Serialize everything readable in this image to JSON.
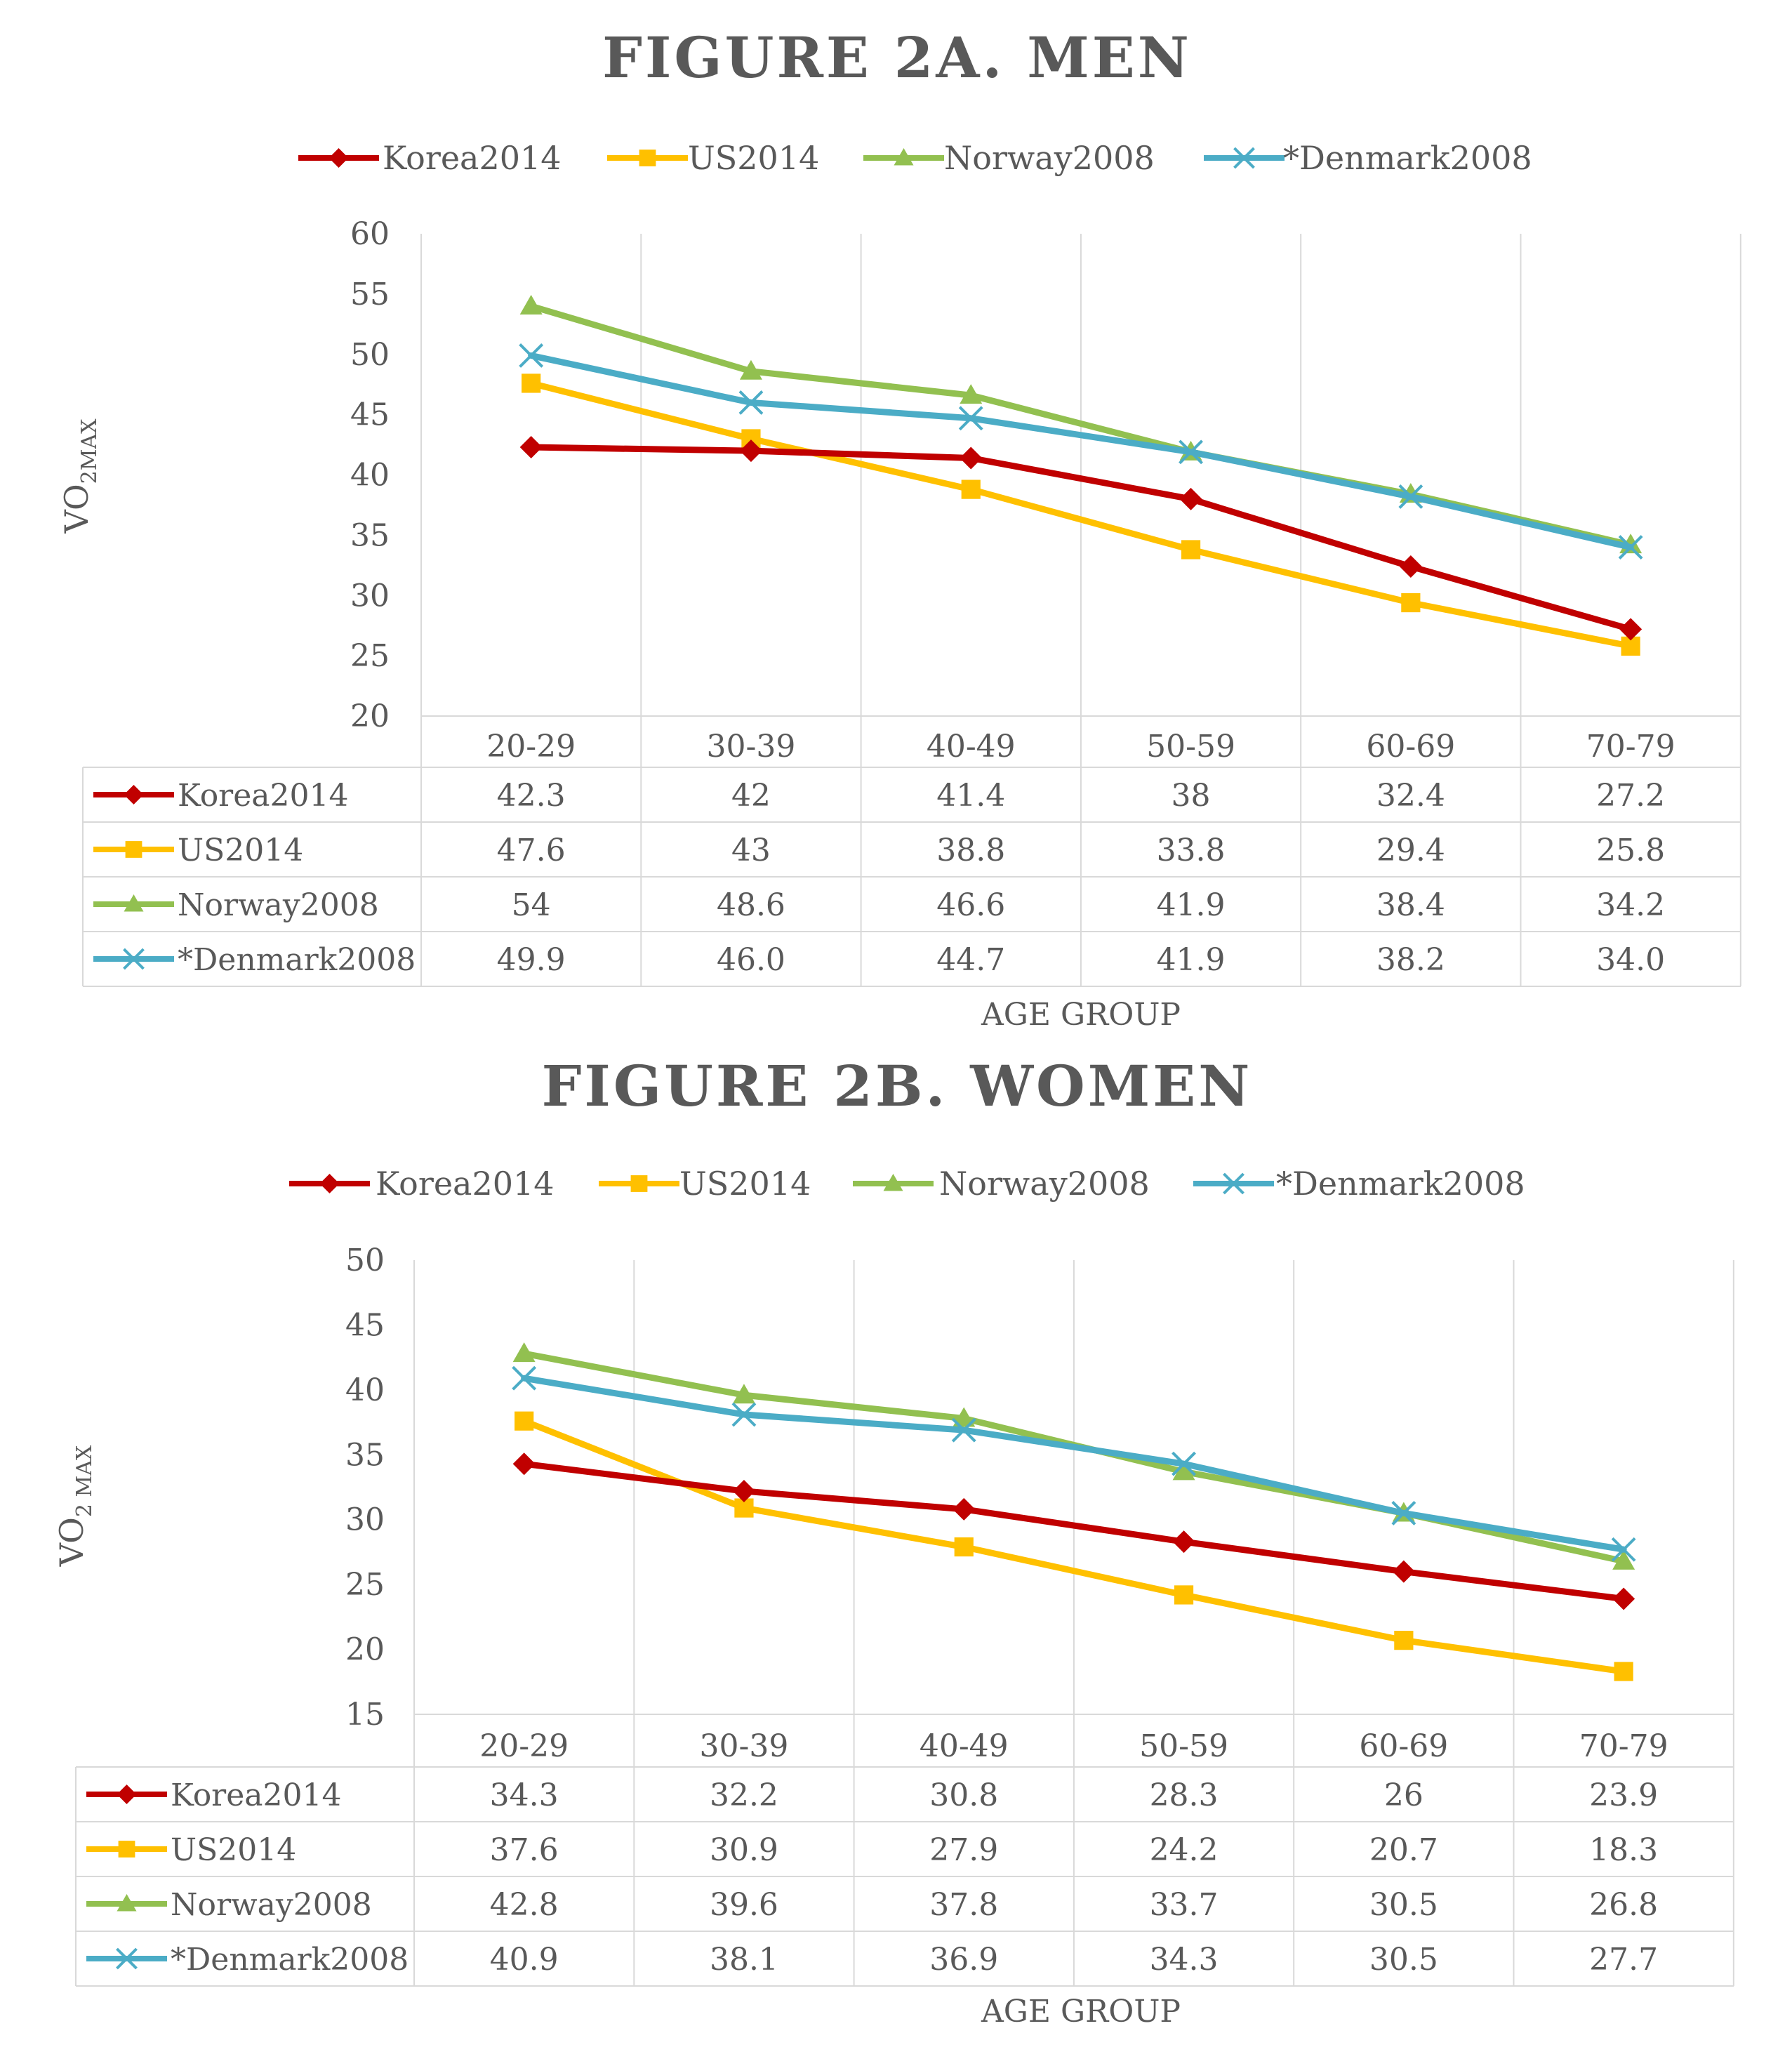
{
  "colors": {
    "Korea2014": "#C00000",
    "US2014": "#FFC000",
    "Norway2008": "#92C050",
    "*Denmark2008": "#4BACC6",
    "grid": "#D9D9D9",
    "text": "#595959"
  },
  "chart_data": [
    {
      "type": "line",
      "title": "FIGURE 2A. MEN",
      "ylabel_main": "VO",
      "ylabel_sub": "2MAX",
      "xlabel": "AGE GROUP",
      "ylim": [
        20,
        60
      ],
      "yticks": [
        "20",
        "25",
        "30",
        "35",
        "40",
        "45",
        "50",
        "55",
        "60"
      ],
      "categories": [
        "20-29",
        "30-39",
        "40-49",
        "50-59",
        "60-69",
        "70-79"
      ],
      "series": [
        {
          "name": "Korea2014",
          "marker": "diamond",
          "values": [
            42.3,
            42,
            41.4,
            38,
            32.4,
            27.2
          ],
          "labels": [
            "42.3",
            "42",
            "41.4",
            "38",
            "32.4",
            "27.2"
          ]
        },
        {
          "name": "US2014",
          "marker": "square",
          "values": [
            47.6,
            43,
            38.8,
            33.8,
            29.4,
            25.8
          ],
          "labels": [
            "47.6",
            "43",
            "38.8",
            "33.8",
            "29.4",
            "25.8"
          ]
        },
        {
          "name": "Norway2008",
          "marker": "triangle",
          "values": [
            54,
            48.6,
            46.6,
            41.9,
            38.4,
            34.2
          ],
          "labels": [
            "54",
            "48.6",
            "46.6",
            "41.9",
            "38.4",
            "34.2"
          ]
        },
        {
          "name": "*Denmark2008",
          "marker": "x",
          "values": [
            49.9,
            46.0,
            44.7,
            41.9,
            38.2,
            34.0
          ],
          "labels": [
            "49.9",
            "46.0",
            "44.7",
            "41.9",
            "38.2",
            "34.0"
          ]
        }
      ]
    },
    {
      "type": "line",
      "title": "FIGURE 2B. WOMEN",
      "ylabel_main": "VO",
      "ylabel_sub": "2 MAX",
      "xlabel": "AGE GROUP",
      "ylim": [
        15,
        50
      ],
      "yticks": [
        "15",
        "20",
        "25",
        "30",
        "35",
        "40",
        "45",
        "50"
      ],
      "categories": [
        "20-29",
        "30-39",
        "40-49",
        "50-59",
        "60-69",
        "70-79"
      ],
      "series": [
        {
          "name": "Korea2014",
          "marker": "diamond",
          "values": [
            34.3,
            32.2,
            30.8,
            28.3,
            26,
            23.9
          ],
          "labels": [
            "34.3",
            "32.2",
            "30.8",
            "28.3",
            "26",
            "23.9"
          ]
        },
        {
          "name": "US2014",
          "marker": "square",
          "values": [
            37.6,
            30.9,
            27.9,
            24.2,
            20.7,
            18.3
          ],
          "labels": [
            "37.6",
            "30.9",
            "27.9",
            "24.2",
            "20.7",
            "18.3"
          ]
        },
        {
          "name": "Norway2008",
          "marker": "triangle",
          "values": [
            42.8,
            39.6,
            37.8,
            33.7,
            30.5,
            26.8
          ],
          "labels": [
            "42.8",
            "39.6",
            "37.8",
            "33.7",
            "30.5",
            "26.8"
          ]
        },
        {
          "name": "*Denmark2008",
          "marker": "x",
          "values": [
            40.9,
            38.1,
            36.9,
            34.3,
            30.5,
            27.7
          ],
          "labels": [
            "40.9",
            "38.1",
            "36.9",
            "34.3",
            "30.5",
            "27.7"
          ]
        }
      ]
    }
  ]
}
